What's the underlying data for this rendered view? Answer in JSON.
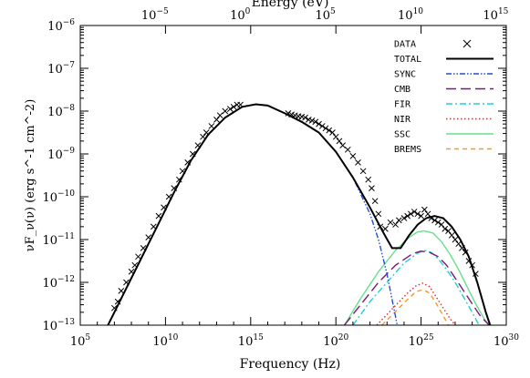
{
  "chart_data": {
    "type": "line",
    "xlabel": "Frequency (Hz)",
    "ylabel": "νF_ν(ν) (erg s^-1 cm^-2)",
    "top_axis_label": "Energy (eV)",
    "x_scale": "log",
    "y_scale": "log",
    "xlim_exp": [
      5,
      30
    ],
    "ylim_exp": [
      -13,
      -6
    ],
    "top_xlim_exp": [
      -9.38,
      15.62
    ],
    "x_ticks_exp": [
      5,
      10,
      15,
      20,
      25,
      30
    ],
    "y_ticks_exp": [
      -13,
      -12,
      -11,
      -10,
      -9,
      -8,
      -7,
      -6
    ],
    "top_ticks_exp": [
      -5,
      0,
      5,
      10,
      15
    ],
    "grid": false,
    "legend_position": "top-right",
    "legend": [
      {
        "label": "DATA",
        "style": "marker-x",
        "color": "#000000"
      },
      {
        "label": "TOTAL",
        "style": "solid",
        "color": "#000000"
      },
      {
        "label": "SYNC",
        "style": "dashdotdot",
        "color": "#1f4fd6"
      },
      {
        "label": "CMB",
        "style": "longdash",
        "color": "#7a1a7a"
      },
      {
        "label": "FIR",
        "style": "dashdot",
        "color": "#22cfd8"
      },
      {
        "label": "NIR",
        "style": "dotted",
        "color": "#e02a2a"
      },
      {
        "label": "SSC",
        "style": "solid",
        "color": "#66e08a"
      },
      {
        "label": "BREMS",
        "style": "dashed",
        "color": "#f39a26"
      }
    ],
    "series": [
      {
        "name": "TOTAL",
        "x_log": [
          6.5,
          7.5,
          8.5,
          9.5,
          10.5,
          11.5,
          12.5,
          13.5,
          14.5,
          15.3,
          16.0,
          17.0,
          18.0,
          19.0,
          20.0,
          21.0,
          22.0,
          22.8,
          23.3,
          23.8,
          24.3,
          24.8,
          25.3,
          25.8,
          26.3,
          26.8,
          27.3,
          27.8,
          28.3,
          28.8,
          29.05
        ],
        "y_log": [
          -13.1,
          -12.3,
          -11.5,
          -10.7,
          -9.9,
          -9.15,
          -8.55,
          -8.15,
          -7.9,
          -7.84,
          -7.87,
          -8.05,
          -8.25,
          -8.5,
          -8.95,
          -9.55,
          -10.25,
          -10.85,
          -11.2,
          -11.2,
          -10.9,
          -10.65,
          -10.5,
          -10.45,
          -10.5,
          -10.7,
          -11.0,
          -11.4,
          -12.0,
          -12.7,
          -13.0
        ]
      },
      {
        "name": "SYNC",
        "x_log": [
          6.5,
          7.5,
          8.5,
          9.5,
          10.5,
          11.5,
          12.5,
          13.5,
          14.5,
          15.3,
          16.0,
          17.0,
          18.0,
          19.0,
          20.0,
          21.0,
          22.0,
          22.5,
          23.0,
          23.3,
          23.5,
          23.6
        ],
        "y_log": [
          -13.1,
          -12.3,
          -11.5,
          -10.7,
          -9.9,
          -9.15,
          -8.55,
          -8.15,
          -7.9,
          -7.84,
          -7.87,
          -8.05,
          -8.25,
          -8.5,
          -8.95,
          -9.55,
          -10.4,
          -11.0,
          -11.8,
          -12.4,
          -12.8,
          -13.0
        ]
      },
      {
        "name": "CMB",
        "x_log": [
          20.5,
          21.5,
          22.5,
          23.5,
          24.5,
          25.0,
          25.5,
          26.0,
          26.5,
          27.0,
          27.5,
          28.0,
          28.5,
          29.0
        ],
        "y_log": [
          -13.0,
          -12.5,
          -12.0,
          -11.6,
          -11.33,
          -11.27,
          -11.3,
          -11.4,
          -11.6,
          -11.9,
          -12.2,
          -12.5,
          -12.8,
          -13.0
        ]
      },
      {
        "name": "FIR",
        "x_log": [
          21.0,
          22.0,
          23.0,
          24.0,
          24.8,
          25.2,
          25.6,
          26.0,
          26.5,
          27.0,
          27.5,
          28.0,
          28.4
        ],
        "y_log": [
          -13.0,
          -12.45,
          -12.0,
          -11.55,
          -11.32,
          -11.25,
          -11.3,
          -11.45,
          -11.7,
          -12.0,
          -12.35,
          -12.7,
          -13.0
        ]
      },
      {
        "name": "NIR",
        "x_log": [
          22.4,
          23.0,
          23.6,
          24.2,
          24.7,
          25.1,
          25.5,
          25.9,
          26.3,
          26.7,
          27.0
        ],
        "y_log": [
          -13.0,
          -12.75,
          -12.5,
          -12.25,
          -12.08,
          -12.02,
          -12.1,
          -12.35,
          -12.6,
          -12.85,
          -13.0
        ]
      },
      {
        "name": "SSC",
        "x_log": [
          20.5,
          21.5,
          22.5,
          23.5,
          24.3,
          24.8,
          25.2,
          25.7,
          26.2,
          26.7,
          27.2,
          27.7,
          28.2,
          28.7,
          29.0
        ],
        "y_log": [
          -13.0,
          -12.35,
          -11.75,
          -11.25,
          -10.95,
          -10.82,
          -10.8,
          -10.85,
          -11.05,
          -11.35,
          -11.7,
          -12.1,
          -12.5,
          -12.85,
          -13.0
        ]
      },
      {
        "name": "BREMS",
        "x_log": [
          22.7,
          23.2,
          23.7,
          24.2,
          24.7,
          25.1,
          25.5,
          25.9,
          26.3,
          26.6
        ],
        "y_log": [
          -13.0,
          -12.8,
          -12.6,
          -12.4,
          -12.22,
          -12.17,
          -12.25,
          -12.5,
          -12.78,
          -13.0
        ]
      }
    ],
    "data_points": {
      "name": "DATA",
      "x_log": [
        7.0,
        7.2,
        7.4,
        7.7,
        8.0,
        8.2,
        8.4,
        8.7,
        9.0,
        9.3,
        9.6,
        9.9,
        10.2,
        10.5,
        10.8,
        11.0,
        11.3,
        11.6,
        11.9,
        12.2,
        12.4,
        12.7,
        13.0,
        13.2,
        13.5,
        13.8,
        14.0,
        14.2,
        14.4,
        17.2,
        17.4,
        17.6,
        17.8,
        18.0,
        18.2,
        18.4,
        18.6,
        18.8,
        19.0,
        19.2,
        19.4,
        19.6,
        19.8,
        20.0,
        20.2,
        20.4,
        20.7,
        21.0,
        21.3,
        21.6,
        21.9,
        22.1,
        22.3,
        22.5,
        22.6,
        22.9,
        23.2,
        23.5,
        23.7,
        24.0,
        24.2,
        24.4,
        24.6,
        24.8,
        25.0,
        25.2,
        25.4,
        25.6,
        25.8,
        26.0,
        26.2,
        26.4,
        26.6,
        26.8,
        27.0,
        27.2,
        27.4,
        27.6,
        27.8,
        28.0,
        28.2
      ],
      "y_log": [
        -12.6,
        -12.45,
        -12.2,
        -12.0,
        -11.75,
        -11.6,
        -11.4,
        -11.2,
        -10.95,
        -10.7,
        -10.45,
        -10.25,
        -10.0,
        -9.8,
        -9.6,
        -9.4,
        -9.2,
        -9.0,
        -8.8,
        -8.6,
        -8.5,
        -8.35,
        -8.2,
        -8.1,
        -8.0,
        -7.95,
        -7.9,
        -7.85,
        -7.85,
        -8.05,
        -8.08,
        -8.1,
        -8.12,
        -8.13,
        -8.15,
        -8.2,
        -8.22,
        -8.25,
        -8.3,
        -8.35,
        -8.4,
        -8.45,
        -8.5,
        -8.6,
        -8.7,
        -8.8,
        -8.9,
        -9.05,
        -9.2,
        -9.4,
        -9.6,
        -9.8,
        -10.1,
        -10.4,
        -10.7,
        -10.75,
        -10.6,
        -10.65,
        -10.55,
        -10.5,
        -10.45,
        -10.4,
        -10.35,
        -10.4,
        -10.45,
        -10.3,
        -10.4,
        -10.5,
        -10.55,
        -10.6,
        -10.65,
        -10.75,
        -10.8,
        -10.9,
        -11.0,
        -11.1,
        -11.2,
        -11.3,
        -11.5,
        -11.6,
        -11.8
      ]
    }
  }
}
